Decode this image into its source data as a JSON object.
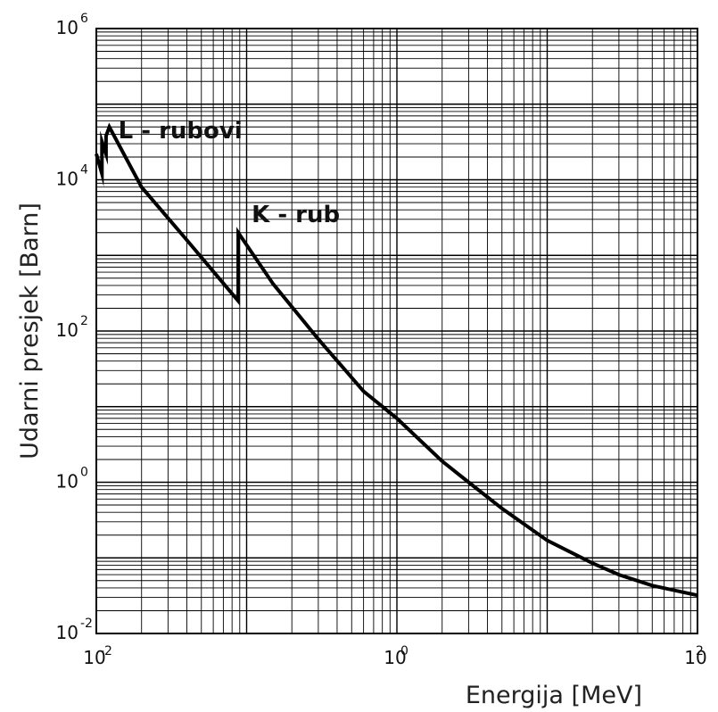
{
  "chart_data": {
    "type": "line",
    "title": "",
    "xlabel": "Energija [MeV]",
    "ylabel": "Udarni presjek [Barn]",
    "x_scale": "log",
    "y_scale": "log",
    "xlim": [
      0.01,
      100
    ],
    "ylim": [
      0.01,
      1000000
    ],
    "grid": true,
    "x_ticks": [
      {
        "base": "10",
        "exp": "-2"
      },
      {
        "base": "10",
        "exp": "0"
      },
      {
        "base": "10",
        "exp": "2"
      }
    ],
    "y_ticks": [
      {
        "base": "10",
        "exp": "6"
      },
      {
        "base": "10",
        "exp": "4"
      },
      {
        "base": "10",
        "exp": "2"
      },
      {
        "base": "10",
        "exp": "0"
      },
      {
        "base": "10",
        "exp": "-2"
      }
    ],
    "annotations": [
      {
        "text": "L - rubovi",
        "x": 0.014,
        "y": 45000
      },
      {
        "text": "K - rub",
        "x": 0.108,
        "y": 3500
      }
    ],
    "series": [
      {
        "points": [
          [
            0.01,
            22000
          ],
          [
            0.0109,
            12000
          ],
          [
            0.0109,
            32000
          ],
          [
            0.0116,
            22000
          ],
          [
            0.0116,
            38000
          ],
          [
            0.0122,
            50000
          ],
          [
            0.02,
            8000
          ],
          [
            0.04,
            1600
          ],
          [
            0.088,
            250
          ],
          [
            0.088,
            2000
          ],
          [
            0.15,
            420
          ],
          [
            0.3,
            78
          ],
          [
            0.6,
            16
          ],
          [
            1,
            7
          ],
          [
            2,
            1.9
          ],
          [
            3,
            1
          ],
          [
            5,
            0.45
          ],
          [
            10,
            0.17
          ],
          [
            20,
            0.085
          ],
          [
            30,
            0.06
          ],
          [
            50,
            0.043
          ],
          [
            100,
            0.032
          ]
        ]
      }
    ]
  }
}
